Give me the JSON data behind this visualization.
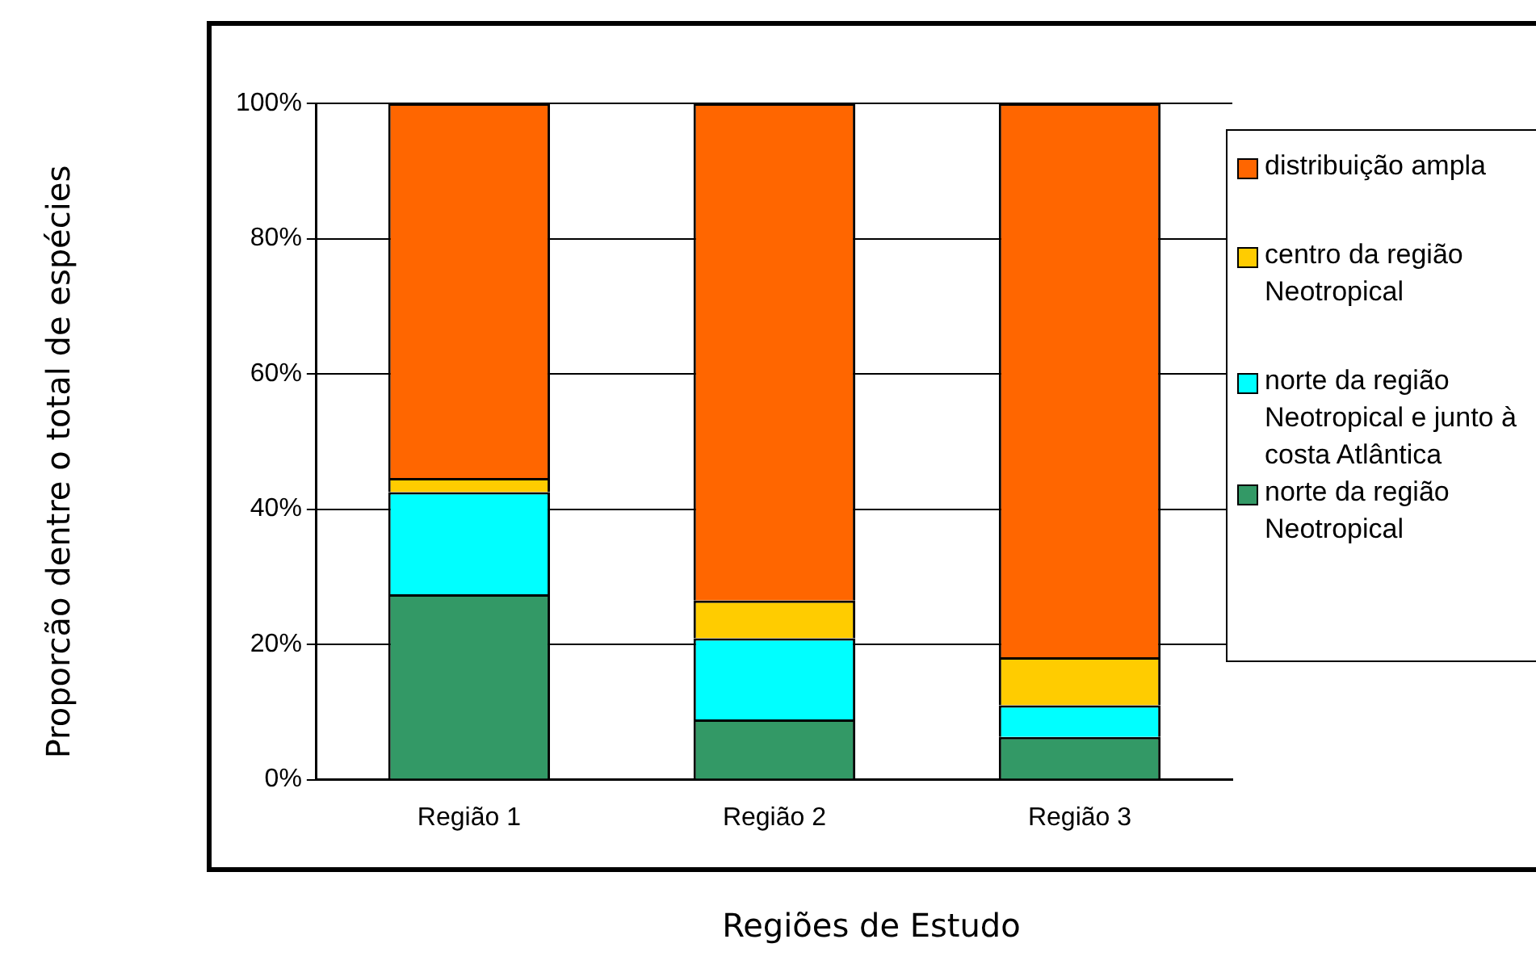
{
  "chart_data": {
    "type": "bar",
    "xlabel": "Regiões de Estudo",
    "ylabel": "Proporcão dentre o total de espécies",
    "categories": [
      "Região 1",
      "Região 2",
      "Região 3"
    ],
    "stacked": true,
    "series": [
      {
        "name": "norte da região Neotropical",
        "color": "#339966",
        "values": [
          27.4,
          8.9,
          6.3
        ]
      },
      {
        "name": "norte da região Neotropical e junto à costa Atlântica",
        "color": "#00ffff",
        "values": [
          15.1,
          12.0,
          4.7
        ]
      },
      {
        "name": "centro da região Neotropical",
        "color": "#ffcc00",
        "values": [
          2.1,
          5.6,
          7.1
        ]
      },
      {
        "name": "distribuição ampla",
        "color": "#ff6600",
        "values": [
          55.4,
          73.5,
          81.9
        ]
      }
    ],
    "ylim": [
      0,
      100
    ],
    "yticks": [
      {
        "value": 0,
        "label": "0%"
      },
      {
        "value": 20,
        "label": "20%"
      },
      {
        "value": 40,
        "label": "40%"
      },
      {
        "value": 60,
        "label": "60%"
      },
      {
        "value": 80,
        "label": "80%"
      },
      {
        "value": 100,
        "label": "100%"
      }
    ],
    "grid": "y",
    "legend": "right"
  }
}
